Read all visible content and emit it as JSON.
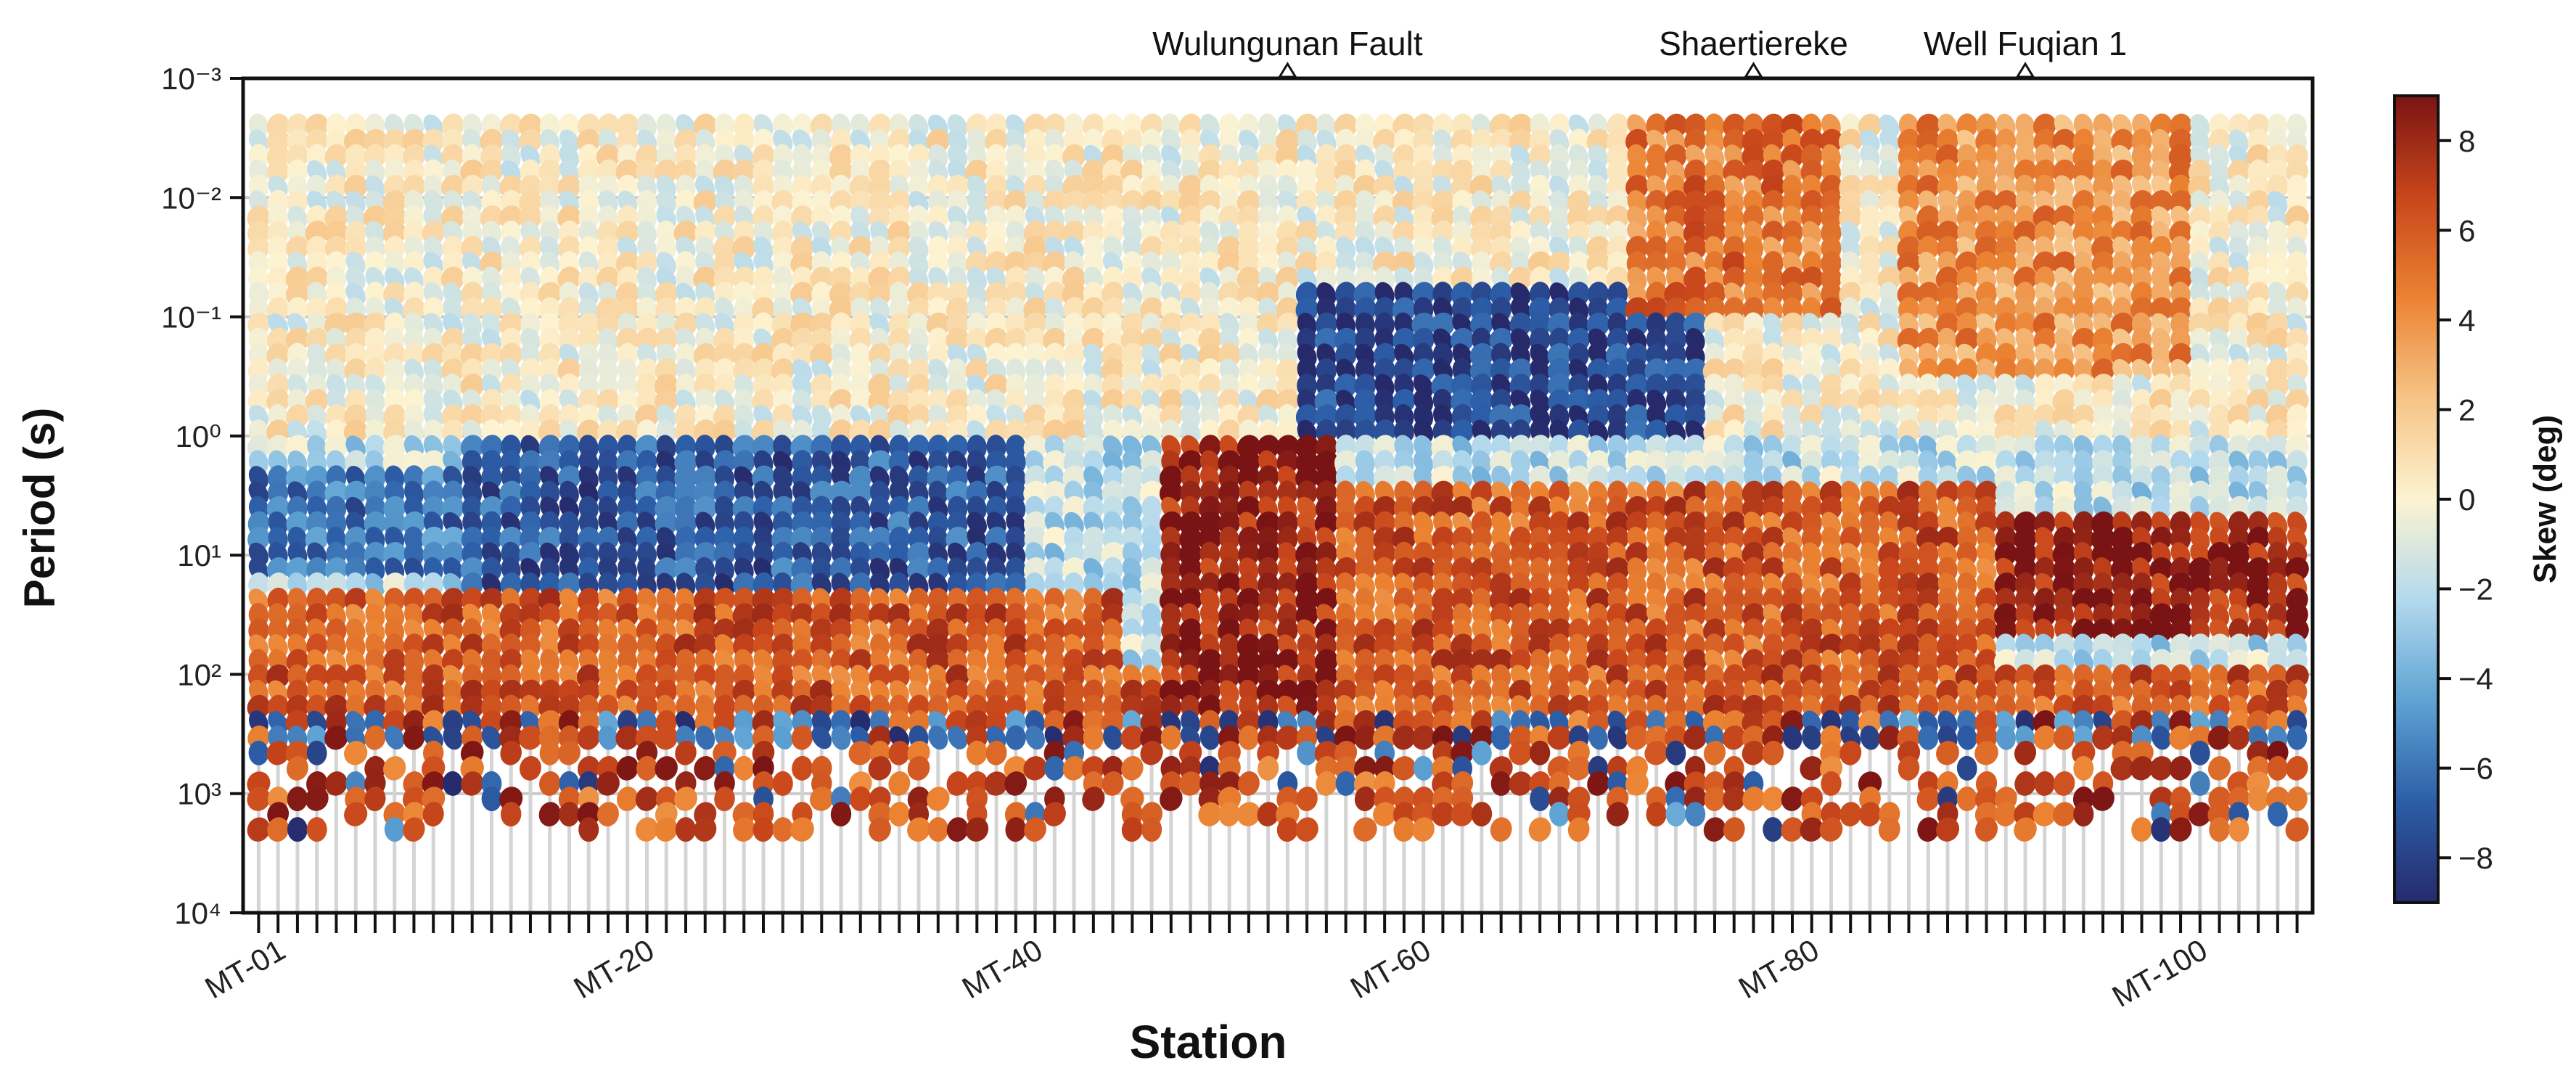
{
  "chart_data": {
    "type": "heatmap",
    "title": "",
    "xlabel": "Station",
    "ylabel": "Period (s)",
    "colorbar_label": "Skew (deg)",
    "y_scale": "log",
    "ylim": [
      0.001,
      10000
    ],
    "y_tick_labels": [
      "10⁻³",
      "10⁻²",
      "10⁻¹",
      "10⁰",
      "10¹",
      "10²",
      "10³",
      "10⁴"
    ],
    "x_tick_labels": [
      "MT-01",
      "MT-20",
      "MT-40",
      "MT-60",
      "MT-80",
      "MT-100"
    ],
    "x_tick_stations": [
      1,
      20,
      40,
      60,
      80,
      100
    ],
    "station_count": 106,
    "colorbar_ticks": [
      "8",
      "6",
      "4",
      "2",
      "0",
      "−2",
      "−4",
      "−6",
      "−8"
    ],
    "colorbar_tick_values": [
      8,
      6,
      4,
      2,
      0,
      -2,
      -4,
      -6,
      -8
    ],
    "color_range": [
      -9,
      9
    ],
    "colormap": [
      "#262a6b",
      "#2c5ea8",
      "#5ea3d3",
      "#b3d9ed",
      "#fdf3d1",
      "#f6c487",
      "#eb8332",
      "#c8461b",
      "#7a1414"
    ],
    "grid": true,
    "annotations": [
      {
        "text": "Wulungunan Fault",
        "station": 54
      },
      {
        "text": "Shaertiereke",
        "station": 78
      },
      {
        "text": "Well Fuqian 1",
        "station": 92
      }
    ],
    "skew_regions": [
      {
        "stations": [
          1,
          50
        ],
        "period_s": [
          0.0025,
          1.0
        ],
        "skew_deg": 0
      },
      {
        "stations": [
          1,
          25
        ],
        "period_s": [
          2,
          15
        ],
        "skew_deg": -6
      },
      {
        "stations": [
          12,
          40
        ],
        "period_s": [
          1,
          40
        ],
        "skew_deg": -7
      },
      {
        "stations": [
          1,
          45
        ],
        "period_s": [
          20,
          80
        ],
        "skew_deg": 6
      },
      {
        "stations": [
          1,
          106
        ],
        "period_s": [
          200,
          2000
        ],
        "skew_deg": 8
      },
      {
        "stations": [
          48,
          56
        ],
        "period_s": [
          1,
          200
        ],
        "skew_deg": 8
      },
      {
        "stations": [
          55,
          75
        ],
        "period_s": [
          0.05,
          1.0
        ],
        "skew_deg": -8
      },
      {
        "stations": [
          72,
          82
        ],
        "period_s": [
          0.0025,
          0.1
        ],
        "skew_deg": 5
      },
      {
        "stations": [
          86,
          100
        ],
        "period_s": [
          0.0025,
          0.3
        ],
        "skew_deg": 4
      },
      {
        "stations": [
          90,
          106
        ],
        "period_s": [
          5,
          50
        ],
        "skew_deg": 8
      },
      {
        "stations": [
          57,
          90
        ],
        "period_s": [
          3,
          200
        ],
        "skew_deg": 6
      }
    ]
  }
}
